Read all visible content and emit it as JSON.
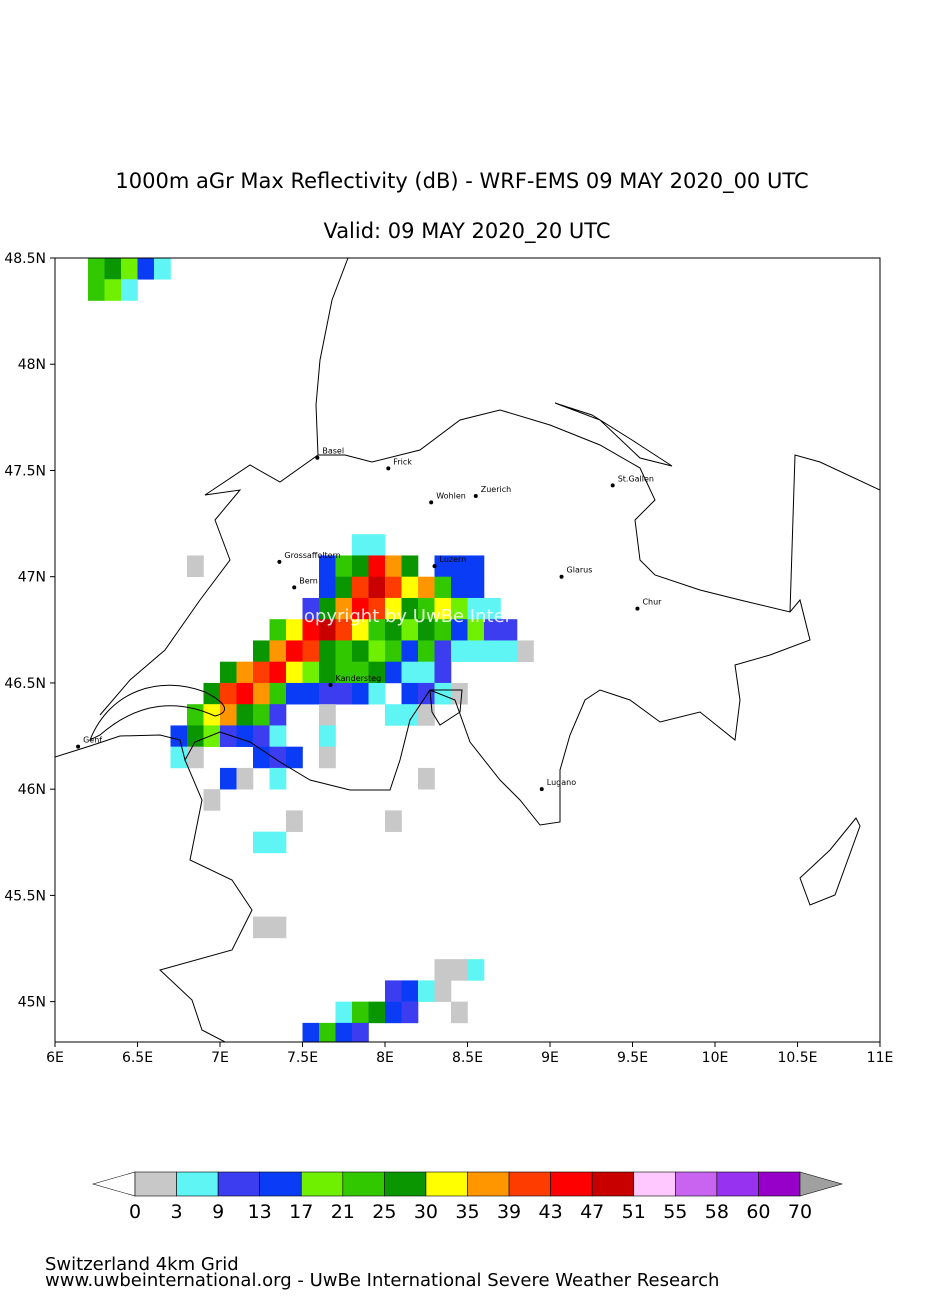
{
  "title": "1000m aGr Max Reflectivity (dB) - WRF-EMS 09 MAY 2020_00 UTC",
  "subtitle": "Valid: 09 MAY 2020_20 UTC",
  "map": {
    "xlim": [
      6,
      11
    ],
    "ylim": [
      44.81,
      48.5
    ],
    "xticks": [
      {
        "value": 6,
        "label": "6E"
      },
      {
        "value": 6.5,
        "label": "6.5E"
      },
      {
        "value": 7,
        "label": "7E"
      },
      {
        "value": 7.5,
        "label": "7.5E"
      },
      {
        "value": 8,
        "label": "8E"
      },
      {
        "value": 8.5,
        "label": "8.5E"
      },
      {
        "value": 9,
        "label": "9E"
      },
      {
        "value": 9.5,
        "label": "9.5E"
      },
      {
        "value": 10,
        "label": "10E"
      },
      {
        "value": 10.5,
        "label": "10.5E"
      },
      {
        "value": 11,
        "label": "11E"
      }
    ],
    "yticks": [
      {
        "value": 48.5,
        "label": "48.5N"
      },
      {
        "value": 48,
        "label": "48N"
      },
      {
        "value": 47.5,
        "label": "47.5N"
      },
      {
        "value": 47,
        "label": "47N"
      },
      {
        "value": 46.5,
        "label": "46.5N"
      },
      {
        "value": 46,
        "label": "46N"
      },
      {
        "value": 45.5,
        "label": "45.5N"
      },
      {
        "value": 45,
        "label": "45N"
      }
    ],
    "cells": [
      [
        7.8,
        47.1,
        3
      ],
      [
        7.9,
        47.1,
        3
      ],
      [
        7.6,
        47.0,
        13
      ],
      [
        7.7,
        47.0,
        21
      ],
      [
        7.8,
        47.0,
        25
      ],
      [
        7.9,
        47.0,
        43
      ],
      [
        8.0,
        47.0,
        35
      ],
      [
        8.1,
        47.0,
        25
      ],
      [
        8.3,
        47.0,
        13
      ],
      [
        8.4,
        47.0,
        13
      ],
      [
        8.5,
        47.0,
        13
      ],
      [
        7.6,
        46.9,
        13
      ],
      [
        7.7,
        46.9,
        25
      ],
      [
        7.8,
        46.9,
        39
      ],
      [
        7.9,
        46.9,
        47
      ],
      [
        8.0,
        46.9,
        39
      ],
      [
        8.1,
        46.9,
        30
      ],
      [
        8.2,
        46.9,
        35
      ],
      [
        8.3,
        46.9,
        21
      ],
      [
        8.4,
        46.9,
        13
      ],
      [
        8.5,
        46.9,
        13
      ],
      [
        7.5,
        46.8,
        9
      ],
      [
        7.6,
        46.8,
        25
      ],
      [
        7.7,
        46.8,
        35
      ],
      [
        7.8,
        46.8,
        43
      ],
      [
        7.9,
        46.8,
        39
      ],
      [
        8.0,
        46.8,
        30
      ],
      [
        8.1,
        46.8,
        25
      ],
      [
        8.2,
        46.8,
        21
      ],
      [
        8.3,
        46.8,
        30
      ],
      [
        8.4,
        46.8,
        17
      ],
      [
        8.5,
        46.8,
        3
      ],
      [
        8.6,
        46.8,
        3
      ],
      [
        7.3,
        46.7,
        21
      ],
      [
        7.4,
        46.7,
        30
      ],
      [
        7.5,
        46.7,
        43
      ],
      [
        7.6,
        46.7,
        47
      ],
      [
        7.7,
        46.7,
        39
      ],
      [
        7.8,
        46.7,
        30
      ],
      [
        7.9,
        46.7,
        21
      ],
      [
        8.0,
        46.7,
        25
      ],
      [
        8.1,
        46.7,
        17
      ],
      [
        8.2,
        46.7,
        25
      ],
      [
        8.3,
        46.7,
        21
      ],
      [
        8.4,
        46.7,
        13
      ],
      [
        8.5,
        46.7,
        17
      ],
      [
        8.6,
        46.7,
        9
      ],
      [
        8.7,
        46.7,
        9
      ],
      [
        7.2,
        46.6,
        25
      ],
      [
        7.3,
        46.6,
        35
      ],
      [
        7.4,
        46.6,
        43
      ],
      [
        7.5,
        46.6,
        39
      ],
      [
        7.6,
        46.6,
        25
      ],
      [
        7.7,
        46.6,
        21
      ],
      [
        7.8,
        46.6,
        25
      ],
      [
        7.9,
        46.6,
        17
      ],
      [
        8.0,
        46.6,
        21
      ],
      [
        8.1,
        46.6,
        13
      ],
      [
        8.2,
        46.6,
        21
      ],
      [
        8.3,
        46.6,
        9
      ],
      [
        8.4,
        46.6,
        3
      ],
      [
        8.5,
        46.6,
        3
      ],
      [
        8.6,
        46.6,
        3
      ],
      [
        8.7,
        46.6,
        3
      ],
      [
        8.8,
        46.6,
        0
      ],
      [
        7.0,
        46.5,
        25
      ],
      [
        7.1,
        46.5,
        35
      ],
      [
        7.2,
        46.5,
        39
      ],
      [
        7.3,
        46.5,
        43
      ],
      [
        7.4,
        46.5,
        30
      ],
      [
        7.5,
        46.5,
        17
      ],
      [
        7.6,
        46.5,
        25
      ],
      [
        7.7,
        46.5,
        21
      ],
      [
        7.8,
        46.5,
        21
      ],
      [
        7.9,
        46.5,
        25
      ],
      [
        8.0,
        46.5,
        13
      ],
      [
        8.1,
        46.5,
        3
      ],
      [
        8.2,
        46.5,
        3
      ],
      [
        8.3,
        46.5,
        9
      ],
      [
        6.9,
        46.4,
        25
      ],
      [
        7.0,
        46.4,
        39
      ],
      [
        7.1,
        46.4,
        43
      ],
      [
        7.2,
        46.4,
        35
      ],
      [
        7.3,
        46.4,
        21
      ],
      [
        7.4,
        46.4,
        13
      ],
      [
        7.5,
        46.4,
        13
      ],
      [
        7.6,
        46.4,
        9
      ],
      [
        7.7,
        46.4,
        9
      ],
      [
        7.8,
        46.4,
        13
      ],
      [
        7.9,
        46.4,
        3
      ],
      [
        8.1,
        46.4,
        13
      ],
      [
        8.2,
        46.4,
        9
      ],
      [
        8.3,
        46.4,
        3
      ],
      [
        8.4,
        46.4,
        0
      ],
      [
        6.8,
        46.3,
        21
      ],
      [
        6.9,
        46.3,
        30
      ],
      [
        7.0,
        46.3,
        35
      ],
      [
        7.1,
        46.3,
        25
      ],
      [
        7.2,
        46.3,
        21
      ],
      [
        7.3,
        46.3,
        9
      ],
      [
        7.6,
        46.3,
        0
      ],
      [
        8.0,
        46.3,
        3
      ],
      [
        8.1,
        46.3,
        3
      ],
      [
        8.2,
        46.3,
        0
      ],
      [
        6.7,
        46.2,
        13
      ],
      [
        6.8,
        46.2,
        25
      ],
      [
        6.9,
        46.2,
        17
      ],
      [
        7.0,
        46.2,
        9
      ],
      [
        7.1,
        46.2,
        13
      ],
      [
        7.2,
        46.2,
        9
      ],
      [
        7.3,
        46.2,
        3
      ],
      [
        7.6,
        46.2,
        3
      ],
      [
        6.7,
        46.1,
        3
      ],
      [
        6.8,
        46.1,
        0
      ],
      [
        7.2,
        46.1,
        13
      ],
      [
        7.3,
        46.1,
        9
      ],
      [
        7.4,
        46.1,
        13
      ],
      [
        7.6,
        46.1,
        0
      ],
      [
        7.0,
        46.0,
        13
      ],
      [
        7.1,
        46.0,
        0
      ],
      [
        7.3,
        46.0,
        3
      ],
      [
        8.2,
        46.0,
        0
      ],
      [
        6.9,
        45.9,
        0
      ],
      [
        7.4,
        45.8,
        0
      ],
      [
        8.0,
        45.8,
        0
      ],
      [
        7.2,
        45.7,
        3
      ],
      [
        7.3,
        45.7,
        3
      ],
      [
        7.2,
        45.3,
        0
      ],
      [
        7.3,
        45.3,
        0
      ],
      [
        6.8,
        47.0,
        0
      ],
      [
        6.2,
        48.4,
        21
      ],
      [
        6.3,
        48.4,
        25
      ],
      [
        6.4,
        48.4,
        17
      ],
      [
        6.5,
        48.4,
        13
      ],
      [
        6.6,
        48.4,
        3
      ],
      [
        6.2,
        48.3,
        21
      ],
      [
        6.3,
        48.3,
        17
      ],
      [
        6.4,
        48.3,
        3
      ],
      [
        8.5,
        45.1,
        3
      ],
      [
        8.4,
        45.1,
        0
      ],
      [
        8.3,
        45.1,
        0
      ],
      [
        8.0,
        45.0,
        9
      ],
      [
        8.1,
        45.0,
        13
      ],
      [
        8.2,
        45.0,
        3
      ],
      [
        8.3,
        45.0,
        0
      ],
      [
        7.7,
        44.9,
        3
      ],
      [
        7.8,
        44.9,
        21
      ],
      [
        7.9,
        44.9,
        25
      ],
      [
        8.0,
        44.9,
        13
      ],
      [
        8.1,
        44.9,
        9
      ],
      [
        8.4,
        44.9,
        0
      ],
      [
        7.5,
        44.8,
        13
      ],
      [
        7.6,
        44.8,
        21
      ],
      [
        7.7,
        44.8,
        13
      ],
      [
        7.8,
        44.8,
        9
      ]
    ],
    "cities": [
      {
        "name": "Basel",
        "lon": 7.59,
        "lat": 47.56
      },
      {
        "name": "Frick",
        "lon": 8.02,
        "lat": 47.51
      },
      {
        "name": "Wohlen",
        "lon": 8.28,
        "lat": 47.35
      },
      {
        "name": "Zuerich",
        "lon": 8.55,
        "lat": 47.38
      },
      {
        "name": "St.Gallen",
        "lon": 9.38,
        "lat": 47.43
      },
      {
        "name": "Grossaffoltern",
        "lon": 7.36,
        "lat": 47.07
      },
      {
        "name": "Luzern",
        "lon": 8.3,
        "lat": 47.05
      },
      {
        "name": "Glarus",
        "lon": 9.07,
        "lat": 47.0
      },
      {
        "name": "Bern",
        "lon": 7.45,
        "lat": 46.95
      },
      {
        "name": "Chur",
        "lon": 9.53,
        "lat": 46.85
      },
      {
        "name": "Kandersteg",
        "lon": 7.67,
        "lat": 46.49
      },
      {
        "name": "Genf",
        "lon": 6.14,
        "lat": 46.2
      },
      {
        "name": "Lugano",
        "lon": 8.95,
        "lat": 46.0
      }
    ],
    "watermark": "opyright by UwBe Inter"
  },
  "colorbar": {
    "levels": [
      0,
      3,
      9,
      13,
      17,
      21,
      25,
      30,
      35,
      39,
      43,
      47,
      51,
      55,
      58,
      60,
      70
    ],
    "colors": [
      "#c8c8c8",
      "#5ff5f5",
      "#3c3cf0",
      "#0a3cf5",
      "#6ef000",
      "#32c800",
      "#0a9600",
      "#ffff00",
      "#ff9600",
      "#ff3c00",
      "#ff0000",
      "#c80000",
      "#ffc8ff",
      "#c864f0",
      "#9632f0",
      "#9600c8"
    ],
    "under_color": "#ffffff",
    "over_color": "#a0a0a0"
  },
  "footer": {
    "line1": "Switzerland 4km Grid",
    "line2": "www.uwbeinternational.org - UwBe International Severe Weather Research"
  }
}
